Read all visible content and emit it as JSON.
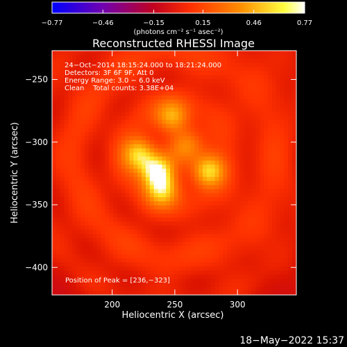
{
  "chart_data": {
    "type": "heatmap",
    "title": "Reconstructed RHESSI Image",
    "xlabel": "Heliocentric X (arcsec)",
    "ylabel": "Heliocentric Y (arcsec)",
    "xlim": [
      152,
      347
    ],
    "ylim": [
      -422,
      -227
    ],
    "x_ticks": [
      200,
      250,
      300
    ],
    "y_ticks": [
      -250,
      -300,
      -350,
      -400
    ],
    "x_tick_labels": [
      "200",
      "250",
      "300"
    ],
    "y_tick_labels": [
      "−250",
      "−300",
      "−350",
      "−400"
    ],
    "colorbar": {
      "range": [
        -0.77,
        0.77
      ],
      "tick_values": [
        -0.77,
        -0.46,
        -0.15,
        0.15,
        0.46,
        0.77
      ],
      "tick_labels": [
        "−0.77",
        "−0.46",
        "−0.15",
        "0.15",
        "0.46",
        "0.77"
      ],
      "units_label": "(photons cm⁻² s⁻¹ asec⁻²)",
      "colors": [
        "#0000ff",
        "#7000b0",
        "#c00020",
        "#ff3000",
        "#ff9000",
        "#ffff40",
        "#ffffff"
      ]
    },
    "annotations": [
      "24−Oct−2014 18:15:24.000 to 18:21:24.000",
      "Detectors: 3F 6F 9F, Att 0",
      "Energy Range: 3.0 − 6.0 keV",
      "Clean    Total counts: 3.38E+04"
    ],
    "peak_label": "Position of Peak = [236,−323]",
    "sources": [
      {
        "x": 236,
        "y": -323,
        "peak": 0.77
      },
      {
        "x": 277,
        "y": -323,
        "peak": 0.62
      },
      {
        "x": 222,
        "y": -310,
        "peak": 0.6
      },
      {
        "x": 248,
        "y": -280,
        "peak": 0.5
      },
      {
        "x": 240,
        "y": -338,
        "peak": 0.58
      },
      {
        "x": 260,
        "y": -302,
        "peak": 0.4
      }
    ]
  },
  "footer_date": "18−May−2022 15:37"
}
